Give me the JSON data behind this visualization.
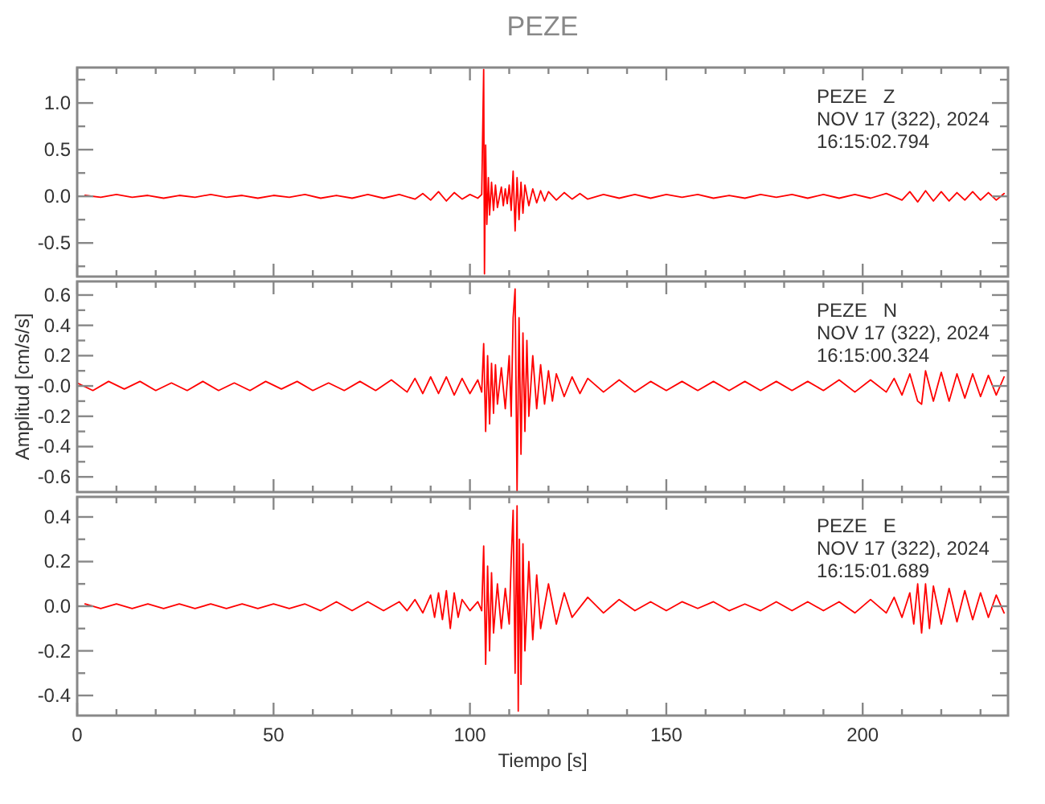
{
  "chart_data": [
    {
      "type": "line",
      "title": "PEZE",
      "annotations": [
        "PEZE   Z",
        "NOV 17 (322), 2024",
        "16:15:02.794"
      ],
      "tick_labels": "y",
      "grid": false,
      "xlim": [
        0,
        237
      ],
      "xticks": [
        {
          "value": 0,
          "label": null
        },
        {
          "value": 10,
          "label": null
        },
        {
          "value": 20,
          "label": null
        },
        {
          "value": 30,
          "label": null
        },
        {
          "value": 40,
          "label": null
        },
        {
          "value": 50,
          "label": null
        },
        {
          "value": 60,
          "label": null
        },
        {
          "value": 70,
          "label": null
        },
        {
          "value": 80,
          "label": null
        },
        {
          "value": 90,
          "label": null
        },
        {
          "value": 100,
          "label": null
        },
        {
          "value": 110,
          "label": null
        },
        {
          "value": 120,
          "label": null
        },
        {
          "value": 130,
          "label": null
        },
        {
          "value": 140,
          "label": null
        },
        {
          "value": 150,
          "label": null
        },
        {
          "value": 160,
          "label": null
        },
        {
          "value": 170,
          "label": null
        },
        {
          "value": 180,
          "label": null
        },
        {
          "value": 190,
          "label": null
        },
        {
          "value": 200,
          "label": null
        },
        {
          "value": 210,
          "label": null
        },
        {
          "value": 220,
          "label": null
        },
        {
          "value": 230,
          "label": null
        }
      ],
      "ylim": [
        -0.86,
        1.38
      ],
      "yticks": [
        {
          "value": -0.75,
          "label": null
        },
        {
          "value": -0.5,
          "label": "-0.5"
        },
        {
          "value": -0.25,
          "label": null
        },
        {
          "value": 0,
          "label": "0.0"
        },
        {
          "value": 0.25,
          "label": null
        },
        {
          "value": 0.5,
          "label": "0.5"
        },
        {
          "value": 0.75,
          "label": null
        },
        {
          "value": 1,
          "label": "1.0"
        },
        {
          "value": 1.25,
          "label": null
        }
      ],
      "series": [
        {
          "color": "#ff0000",
          "x": [
            2,
            6,
            10,
            14,
            18,
            22,
            26,
            30,
            34,
            38,
            42,
            46,
            50,
            54,
            58,
            62,
            66,
            70,
            74,
            78,
            82,
            86,
            88,
            90,
            92,
            94,
            96,
            98,
            100,
            102,
            103,
            103.5,
            103.7,
            104,
            104.3,
            104.7,
            105,
            105.5,
            106,
            106.5,
            107,
            108,
            108.5,
            109,
            109.5,
            110,
            110.5,
            111,
            111.5,
            112,
            112.5,
            113,
            113.5,
            114,
            115,
            116,
            117,
            118,
            119,
            120,
            122,
            124,
            126,
            128,
            130,
            134,
            138,
            142,
            146,
            150,
            154,
            158,
            162,
            166,
            170,
            174,
            178,
            182,
            186,
            190,
            194,
            198,
            202,
            206,
            210,
            212,
            214,
            216,
            218,
            220,
            222,
            224,
            226,
            228,
            230,
            232,
            234,
            236
          ],
          "values": [
            0.01,
            -0.01,
            0.02,
            -0.01,
            0.01,
            -0.02,
            0.01,
            -0.01,
            0.02,
            -0.01,
            0.01,
            -0.02,
            0.01,
            -0.01,
            0.02,
            -0.02,
            0.01,
            -0.02,
            0.02,
            -0.02,
            0.02,
            -0.03,
            0.03,
            -0.04,
            0.05,
            -0.05,
            0.04,
            -0.03,
            0.02,
            -0.02,
            0.02,
            1.36,
            -0.83,
            0.55,
            -0.3,
            0.2,
            -0.2,
            0.15,
            -0.15,
            0.12,
            -0.12,
            0.1,
            -0.1,
            0.08,
            -0.08,
            0.12,
            -0.15,
            0.27,
            -0.37,
            0.2,
            -0.25,
            0.15,
            -0.18,
            0.12,
            -0.1,
            0.08,
            -0.07,
            0.06,
            -0.05,
            0.05,
            -0.04,
            0.04,
            -0.03,
            0.03,
            -0.03,
            0.02,
            -0.02,
            0.02,
            -0.02,
            0.02,
            -0.01,
            0.02,
            -0.02,
            0.01,
            -0.02,
            0.02,
            -0.01,
            0.02,
            -0.02,
            0.02,
            -0.02,
            0.02,
            -0.02,
            0.03,
            -0.04,
            0.05,
            -0.06,
            0.06,
            -0.05,
            0.05,
            -0.05,
            0.04,
            -0.04,
            0.05,
            -0.04,
            0.04,
            -0.04,
            0.03
          ]
        }
      ]
    },
    {
      "type": "line",
      "ylabel": "Amplitud [cm/s/s]",
      "annotations": [
        "PEZE   N",
        "NOV 17 (322), 2024",
        "16:15:00.324"
      ],
      "tick_labels": "y",
      "grid": false,
      "xlim": [
        0,
        237
      ],
      "xticks": [
        {
          "value": 0,
          "label": null
        },
        {
          "value": 10,
          "label": null
        },
        {
          "value": 20,
          "label": null
        },
        {
          "value": 30,
          "label": null
        },
        {
          "value": 40,
          "label": null
        },
        {
          "value": 50,
          "label": null
        },
        {
          "value": 60,
          "label": null
        },
        {
          "value": 70,
          "label": null
        },
        {
          "value": 80,
          "label": null
        },
        {
          "value": 90,
          "label": null
        },
        {
          "value": 100,
          "label": null
        },
        {
          "value": 110,
          "label": null
        },
        {
          "value": 120,
          "label": null
        },
        {
          "value": 130,
          "label": null
        },
        {
          "value": 140,
          "label": null
        },
        {
          "value": 150,
          "label": null
        },
        {
          "value": 160,
          "label": null
        },
        {
          "value": 170,
          "label": null
        },
        {
          "value": 180,
          "label": null
        },
        {
          "value": 190,
          "label": null
        },
        {
          "value": 200,
          "label": null
        },
        {
          "value": 210,
          "label": null
        },
        {
          "value": 220,
          "label": null
        },
        {
          "value": 230,
          "label": null
        }
      ],
      "ylim": [
        -0.7,
        0.69
      ],
      "yticks": [
        {
          "value": -0.6,
          "label": "-0.6"
        },
        {
          "value": -0.5,
          "label": null
        },
        {
          "value": -0.4,
          "label": "-0.4"
        },
        {
          "value": -0.3,
          "label": null
        },
        {
          "value": -0.2,
          "label": "-0.2"
        },
        {
          "value": -0.1,
          "label": null
        },
        {
          "value": 0,
          "label": "-0.0"
        },
        {
          "value": 0.1,
          "label": null
        },
        {
          "value": 0.2,
          "label": "0.2"
        },
        {
          "value": 0.3,
          "label": null
        },
        {
          "value": 0.4,
          "label": "0.4"
        },
        {
          "value": 0.5,
          "label": null
        },
        {
          "value": 0.6,
          "label": "0.6"
        }
      ],
      "series": [
        {
          "color": "#ff0000",
          "x": [
            0,
            4,
            8,
            12,
            16,
            20,
            24,
            28,
            32,
            36,
            40,
            44,
            48,
            52,
            56,
            60,
            64,
            68,
            72,
            76,
            80,
            84,
            86,
            88,
            90,
            92,
            94,
            96,
            98,
            100,
            102,
            103,
            103.5,
            104,
            104.5,
            105,
            105.5,
            106,
            106.5,
            107,
            108,
            109,
            110,
            110.5,
            111,
            111.5,
            112,
            112.5,
            113,
            113.5,
            114,
            114.5,
            115,
            116,
            117,
            118,
            119,
            120,
            121,
            122,
            124,
            126,
            128,
            130,
            134,
            138,
            142,
            146,
            150,
            154,
            158,
            162,
            166,
            170,
            174,
            178,
            182,
            186,
            190,
            194,
            198,
            202,
            206,
            208,
            210,
            212,
            214,
            215,
            216,
            218,
            220,
            222,
            224,
            226,
            228,
            230,
            232,
            234,
            236
          ],
          "values": [
            0.02,
            -0.03,
            0.03,
            -0.02,
            0.03,
            -0.03,
            0.02,
            -0.03,
            0.03,
            -0.03,
            0.02,
            -0.03,
            0.03,
            -0.02,
            0.03,
            -0.03,
            0.02,
            -0.03,
            0.03,
            -0.03,
            0.04,
            -0.04,
            0.05,
            -0.05,
            0.06,
            -0.05,
            0.06,
            -0.06,
            0.05,
            -0.05,
            0.04,
            -0.04,
            0.28,
            -0.3,
            0.2,
            -0.25,
            0.15,
            -0.18,
            0.14,
            -0.12,
            0.12,
            -0.15,
            0.2,
            -0.2,
            0.45,
            0.64,
            -0.7,
            0.45,
            -0.45,
            0.35,
            -0.3,
            0.3,
            -0.2,
            0.2,
            -0.15,
            0.14,
            -0.12,
            0.1,
            -0.1,
            0.08,
            -0.07,
            0.06,
            -0.05,
            0.05,
            -0.04,
            0.04,
            -0.04,
            0.03,
            -0.03,
            0.03,
            -0.03,
            0.03,
            -0.03,
            0.03,
            -0.03,
            0.03,
            -0.03,
            0.03,
            -0.03,
            0.04,
            -0.04,
            0.04,
            -0.04,
            0.05,
            -0.06,
            0.08,
            -0.1,
            -0.12,
            0.1,
            -0.1,
            0.09,
            -0.1,
            0.08,
            -0.08,
            0.08,
            -0.07,
            0.07,
            -0.06,
            0.06
          ]
        }
      ]
    },
    {
      "type": "line",
      "xlabel": "Tiempo [s]",
      "annotations": [
        "PEZE   E",
        "NOV 17 (322), 2024",
        "16:15:01.689"
      ],
      "grid": false,
      "xlim": [
        0,
        237
      ],
      "xticks": [
        {
          "value": 0,
          "label": "0"
        },
        {
          "value": 10,
          "label": null
        },
        {
          "value": 20,
          "label": null
        },
        {
          "value": 30,
          "label": null
        },
        {
          "value": 40,
          "label": null
        },
        {
          "value": 50,
          "label": "50"
        },
        {
          "value": 60,
          "label": null
        },
        {
          "value": 70,
          "label": null
        },
        {
          "value": 80,
          "label": null
        },
        {
          "value": 90,
          "label": null
        },
        {
          "value": 100,
          "label": "100"
        },
        {
          "value": 110,
          "label": null
        },
        {
          "value": 120,
          "label": null
        },
        {
          "value": 130,
          "label": null
        },
        {
          "value": 140,
          "label": null
        },
        {
          "value": 150,
          "label": "150"
        },
        {
          "value": 160,
          "label": null
        },
        {
          "value": 170,
          "label": null
        },
        {
          "value": 180,
          "label": null
        },
        {
          "value": 190,
          "label": null
        },
        {
          "value": 200,
          "label": "200"
        },
        {
          "value": 210,
          "label": null
        },
        {
          "value": 220,
          "label": null
        },
        {
          "value": 230,
          "label": null
        }
      ],
      "ylim": [
        -0.49,
        0.49
      ],
      "yticks": [
        {
          "value": -0.4,
          "label": "-0.4"
        },
        {
          "value": -0.3,
          "label": null
        },
        {
          "value": -0.2,
          "label": "-0.2"
        },
        {
          "value": -0.1,
          "label": null
        },
        {
          "value": 0,
          "label": "0.0"
        },
        {
          "value": 0.1,
          "label": null
        },
        {
          "value": 0.2,
          "label": "0.2"
        },
        {
          "value": 0.3,
          "label": null
        },
        {
          "value": 0.4,
          "label": "0.4"
        }
      ],
      "series": [
        {
          "color": "#ff0000",
          "x": [
            2,
            6,
            10,
            14,
            18,
            22,
            26,
            30,
            34,
            38,
            42,
            46,
            50,
            54,
            58,
            62,
            66,
            70,
            74,
            78,
            82,
            84,
            86,
            88,
            90,
            91,
            92,
            93,
            94,
            95,
            96,
            97,
            98,
            100,
            102,
            103,
            103.5,
            104,
            104.5,
            105,
            105.5,
            106,
            107,
            108,
            109,
            110,
            110.5,
            111,
            111.5,
            112,
            112.3,
            112.6,
            113,
            113.5,
            114,
            115,
            116,
            117,
            118,
            120,
            122,
            124,
            126,
            130,
            134,
            138,
            142,
            146,
            150,
            154,
            158,
            162,
            166,
            170,
            174,
            178,
            182,
            186,
            190,
            194,
            198,
            202,
            206,
            208,
            210,
            212,
            213,
            214,
            215,
            216,
            217,
            218,
            220,
            222,
            224,
            226,
            228,
            230,
            232,
            234,
            236
          ],
          "values": [
            0.01,
            -0.01,
            0.01,
            -0.01,
            0.01,
            -0.01,
            0.01,
            -0.01,
            0.01,
            -0.01,
            0.01,
            -0.01,
            0.01,
            -0.01,
            0.01,
            -0.02,
            0.02,
            -0.02,
            0.02,
            -0.02,
            0.02,
            -0.02,
            0.03,
            -0.03,
            0.05,
            -0.05,
            0.06,
            -0.06,
            0.07,
            -0.1,
            0.06,
            -0.05,
            0.03,
            -0.02,
            0.02,
            -0.02,
            0.27,
            -0.26,
            0.18,
            -0.2,
            0.15,
            -0.12,
            0.1,
            -0.1,
            0.08,
            -0.08,
            0.2,
            0.43,
            -0.3,
            0.45,
            -0.47,
            0.3,
            -0.35,
            0.28,
            -0.2,
            0.2,
            -0.15,
            0.14,
            -0.1,
            0.1,
            -0.08,
            0.06,
            -0.05,
            0.04,
            -0.03,
            0.03,
            -0.02,
            0.02,
            -0.02,
            0.02,
            -0.01,
            0.02,
            -0.02,
            0.01,
            -0.02,
            0.02,
            -0.02,
            0.02,
            -0.02,
            0.02,
            -0.03,
            0.03,
            -0.03,
            0.04,
            -0.05,
            0.06,
            -0.08,
            0.1,
            -0.12,
            0.1,
            -0.1,
            0.09,
            -0.08,
            0.08,
            -0.07,
            0.07,
            -0.06,
            0.06,
            -0.05,
            0.05,
            -0.03
          ]
        }
      ]
    }
  ]
}
